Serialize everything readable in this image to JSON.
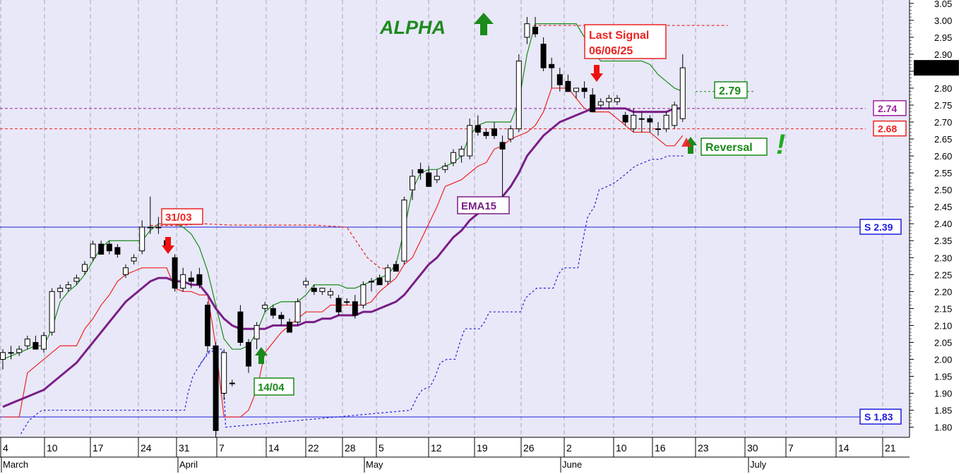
{
  "chart_data": {
    "type": "candlestick",
    "title": "ALPHA",
    "y_range": [
      1.77,
      3.06
    ],
    "y_ticks": [
      "3.05",
      "3.00",
      "2.95",
      "2.90",
      "2.85",
      "2.80",
      "2.75",
      "2.70",
      "2.65",
      "2.60",
      "2.55",
      "2.50",
      "2.45",
      "2.40",
      "2.35",
      "2.30",
      "2.25",
      "2.20",
      "2.15",
      "2.10",
      "2.05",
      "2.00",
      "1.95",
      "1.90",
      "1.85",
      "1.80"
    ],
    "x_day_labels": [
      "4",
      "10",
      "17",
      "24",
      "31",
      "7",
      "14",
      "22",
      "28",
      "5",
      "12",
      "19",
      "26",
      "2",
      "10",
      "16",
      "23",
      "30",
      "7",
      "14",
      "21"
    ],
    "x_month_labels": [
      "March",
      "April",
      "May",
      "June",
      "July"
    ],
    "grid": "vertical dashed",
    "last_price_label": "2.86000",
    "candles": [
      [
        2.0,
        2.03,
        1.97,
        2.02
      ],
      [
        2.02,
        2.04,
        2.0,
        2.02
      ],
      [
        2.02,
        2.04,
        2.01,
        2.03
      ],
      [
        2.04,
        2.07,
        2.03,
        2.06
      ],
      [
        2.05,
        2.07,
        2.03,
        2.03
      ],
      [
        2.03,
        2.08,
        2.02,
        2.07
      ],
      [
        2.08,
        2.21,
        2.07,
        2.2
      ],
      [
        2.2,
        2.22,
        2.18,
        2.21
      ],
      [
        2.21,
        2.23,
        2.2,
        2.22
      ],
      [
        2.23,
        2.25,
        2.22,
        2.24
      ],
      [
        2.26,
        2.29,
        2.25,
        2.28
      ],
      [
        2.3,
        2.35,
        2.29,
        2.34
      ],
      [
        2.34,
        2.35,
        2.32,
        2.31
      ],
      [
        2.34,
        2.35,
        2.31,
        2.32
      ],
      [
        2.33,
        2.34,
        2.3,
        2.31
      ],
      [
        2.25,
        2.28,
        2.24,
        2.27
      ],
      [
        2.29,
        2.31,
        2.28,
        2.3
      ],
      [
        2.32,
        2.41,
        2.31,
        2.39
      ],
      [
        2.39,
        2.48,
        2.37,
        2.39
      ],
      [
        2.39,
        2.42,
        2.37,
        2.39
      ],
      [
        2.35,
        2.36,
        2.33,
        2.33
      ],
      [
        2.3,
        2.31,
        2.2,
        2.21
      ],
      [
        2.21,
        2.27,
        2.2,
        2.25
      ],
      [
        2.24,
        2.26,
        2.21,
        2.23
      ],
      [
        2.25,
        2.27,
        2.21,
        2.22
      ],
      [
        2.16,
        2.17,
        2.02,
        2.04
      ],
      [
        2.04,
        2.05,
        1.76,
        1.79
      ],
      [
        1.9,
        2.03,
        1.88,
        2.02
      ],
      [
        1.93,
        1.94,
        1.92,
        1.93
      ],
      [
        2.14,
        2.16,
        2.04,
        2.05
      ],
      [
        2.05,
        2.06,
        1.96,
        1.98
      ],
      [
        2.06,
        2.11,
        2.03,
        2.1
      ],
      [
        2.15,
        2.17,
        2.14,
        2.16
      ],
      [
        2.15,
        2.16,
        2.12,
        2.13
      ],
      [
        2.13,
        2.14,
        2.1,
        2.12
      ],
      [
        2.11,
        2.12,
        2.08,
        2.08
      ],
      [
        2.11,
        2.18,
        2.1,
        2.17
      ],
      [
        2.22,
        2.24,
        2.21,
        2.23
      ],
      [
        2.21,
        2.22,
        2.19,
        2.2
      ],
      [
        2.2,
        2.21,
        2.19,
        2.21
      ],
      [
        2.19,
        2.21,
        2.18,
        2.2
      ],
      [
        2.18,
        2.19,
        2.13,
        2.14
      ],
      [
        2.17,
        2.18,
        2.16,
        2.17
      ],
      [
        2.17,
        2.19,
        2.12,
        2.13
      ],
      [
        2.16,
        2.23,
        2.15,
        2.22
      ],
      [
        2.23,
        2.24,
        2.2,
        2.23
      ],
      [
        2.24,
        2.25,
        2.22,
        2.22
      ],
      [
        2.23,
        2.28,
        2.22,
        2.27
      ],
      [
        2.28,
        2.29,
        2.27,
        2.26
      ],
      [
        2.29,
        2.48,
        2.28,
        2.47
      ],
      [
        2.5,
        2.56,
        2.47,
        2.54
      ],
      [
        2.56,
        2.58,
        2.53,
        2.55
      ],
      [
        2.55,
        2.57,
        2.52,
        2.51
      ],
      [
        2.53,
        2.56,
        2.52,
        2.54
      ],
      [
        2.56,
        2.58,
        2.55,
        2.57
      ],
      [
        2.58,
        2.62,
        2.57,
        2.61
      ],
      [
        2.6,
        2.63,
        2.58,
        2.62
      ],
      [
        2.6,
        2.71,
        2.59,
        2.69
      ],
      [
        2.69,
        2.72,
        2.66,
        2.67
      ],
      [
        2.67,
        2.68,
        2.65,
        2.66
      ],
      [
        2.68,
        2.7,
        2.65,
        2.66
      ],
      [
        2.64,
        2.66,
        2.47,
        2.62
      ],
      [
        2.65,
        2.69,
        2.64,
        2.68
      ],
      [
        2.68,
        2.9,
        2.67,
        2.88
      ],
      [
        2.95,
        3.01,
        2.93,
        2.99
      ],
      [
        2.98,
        3.01,
        2.95,
        2.96
      ],
      [
        2.93,
        2.95,
        2.85,
        2.86
      ],
      [
        2.87,
        2.89,
        2.8,
        2.86
      ],
      [
        2.84,
        2.86,
        2.79,
        2.81
      ],
      [
        2.82,
        2.84,
        2.8,
        2.79
      ],
      [
        2.79,
        2.8,
        2.77,
        2.8
      ],
      [
        2.8,
        2.82,
        2.77,
        2.79
      ],
      [
        2.78,
        2.8,
        2.74,
        2.73
      ],
      [
        2.75,
        2.77,
        2.74,
        2.76
      ],
      [
        2.76,
        2.78,
        2.74,
        2.77
      ],
      [
        2.76,
        2.78,
        2.75,
        2.77
      ],
      [
        2.72,
        2.73,
        2.69,
        2.7
      ],
      [
        2.68,
        2.74,
        2.67,
        2.72
      ],
      [
        2.71,
        2.73,
        2.67,
        2.71
      ],
      [
        2.71,
        2.72,
        2.67,
        2.7
      ],
      [
        2.68,
        2.7,
        2.66,
        2.68
      ],
      [
        2.68,
        2.73,
        2.67,
        2.72
      ],
      [
        2.69,
        2.76,
        2.68,
        2.75
      ],
      [
        2.71,
        2.9,
        2.7,
        2.86
      ]
    ],
    "ema15": [
      1.86,
      1.87,
      1.88,
      1.89,
      1.9,
      1.91,
      1.93,
      1.95,
      1.97,
      1.99,
      2.02,
      2.05,
      2.08,
      2.11,
      2.14,
      2.17,
      2.19,
      2.21,
      2.23,
      2.24,
      2.24,
      2.23,
      2.23,
      2.22,
      2.22,
      2.19,
      2.15,
      2.12,
      2.1,
      2.09,
      2.09,
      2.09,
      2.09,
      2.1,
      2.1,
      2.1,
      2.1,
      2.11,
      2.11,
      2.12,
      2.12,
      2.13,
      2.13,
      2.13,
      2.14,
      2.14,
      2.15,
      2.16,
      2.17,
      2.19,
      2.22,
      2.25,
      2.28,
      2.3,
      2.33,
      2.36,
      2.38,
      2.41,
      2.43,
      2.44,
      2.46,
      2.48,
      2.51,
      2.55,
      2.6,
      2.63,
      2.66,
      2.68,
      2.7,
      2.71,
      2.72,
      2.73,
      2.74,
      2.74,
      2.74,
      2.74,
      2.74,
      2.73,
      2.73,
      2.73,
      2.73,
      2.73,
      2.74,
      2.74
    ],
    "upper_band": [
      2.0,
      2.01,
      2.02,
      2.03,
      2.04,
      2.04,
      2.09,
      2.17,
      2.2,
      2.22,
      2.25,
      2.29,
      2.33,
      2.35,
      2.35,
      2.35,
      2.35,
      2.35,
      2.38,
      2.4,
      2.4,
      2.4,
      2.39,
      2.37,
      2.33,
      2.26,
      2.16,
      2.06,
      2.03,
      2.03,
      2.04,
      2.08,
      2.14,
      2.16,
      2.17,
      2.17,
      2.17,
      2.19,
      2.22,
      2.22,
      2.22,
      2.22,
      2.21,
      2.21,
      2.22,
      2.23,
      2.24,
      2.25,
      2.28,
      2.38,
      2.5,
      2.55,
      2.56,
      2.56,
      2.57,
      2.58,
      2.6,
      2.66,
      2.69,
      2.7,
      2.7,
      2.7,
      2.7,
      2.76,
      2.9,
      2.99,
      2.99,
      2.99,
      2.99,
      2.99,
      2.99,
      2.95,
      2.91,
      2.88,
      2.88,
      2.88,
      2.88,
      2.88,
      2.88,
      2.87,
      2.84,
      2.82,
      2.8,
      2.79
    ],
    "lower_band": [
      1.83,
      1.83,
      1.83,
      1.96,
      1.98,
      2.0,
      2.02,
      2.04,
      2.04,
      2.04,
      2.09,
      2.12,
      2.16,
      2.19,
      2.23,
      2.25,
      2.26,
      2.27,
      2.27,
      2.27,
      2.27,
      2.21,
      2.2,
      2.2,
      2.19,
      2.19,
      2.04,
      1.83,
      1.83,
      1.83,
      1.85,
      1.91,
      2.02,
      2.05,
      2.08,
      2.1,
      2.12,
      2.14,
      2.14,
      2.14,
      2.16,
      2.16,
      2.16,
      2.16,
      2.16,
      2.17,
      2.2,
      2.22,
      2.24,
      2.28,
      2.3,
      2.35,
      2.4,
      2.45,
      2.51,
      2.52,
      2.53,
      2.55,
      2.57,
      2.58,
      2.62,
      2.63,
      2.65,
      2.66,
      2.67,
      2.69,
      2.73,
      2.8,
      2.8,
      2.8,
      2.77,
      2.74,
      2.73,
      2.73,
      2.73,
      2.71,
      2.69,
      2.67,
      2.67,
      2.67,
      2.65,
      2.63,
      2.63,
      2.66
    ],
    "support_dotted": [
      null,
      null,
      null,
      null,
      null,
      null,
      null,
      null,
      null,
      null,
      null,
      null,
      null,
      null,
      null,
      null,
      null,
      null,
      null,
      null,
      null,
      null,
      null,
      null,
      1.98,
      2.02,
      2.04,
      null,
      null,
      null,
      null,
      null,
      null,
      null,
      null,
      null,
      null,
      null,
      null,
      null,
      null,
      null,
      null,
      null,
      null,
      null,
      null,
      null,
      null,
      null,
      null,
      null,
      null,
      null,
      null,
      null,
      null,
      null,
      null,
      null,
      null,
      null,
      null,
      null,
      null,
      null,
      null,
      null,
      null,
      null,
      null,
      null,
      null,
      null,
      null,
      null,
      null,
      null,
      null,
      null,
      null,
      null,
      null,
      null
    ],
    "trailing_stop": [
      [
        2.2,
        1.78
      ],
      [
        3.2,
        1.82
      ],
      [
        4.2,
        1.84
      ],
      [
        4.8,
        1.85
      ],
      [
        10.2,
        1.85
      ],
      [
        12.2,
        1.85
      ],
      [
        17.2,
        1.85
      ],
      [
        22.2,
        1.85
      ],
      [
        22.6,
        1.9
      ],
      [
        23.2,
        1.95
      ],
      [
        24.2,
        1.99
      ],
      [
        25.2,
        2.02
      ],
      [
        26.2,
        2.03
      ],
      [
        26.8,
        2.03
      ],
      [
        27.2,
        1.8
      ],
      [
        49.8,
        1.85
      ],
      [
        50.6,
        1.89
      ],
      [
        51.2,
        1.91
      ],
      [
        52.2,
        1.92
      ],
      [
        52.8,
        1.95
      ],
      [
        53.4,
        1.99
      ],
      [
        54.2,
        2.0
      ],
      [
        55.2,
        2.0
      ],
      [
        55.8,
        2.05
      ],
      [
        56.4,
        2.09
      ],
      [
        57.2,
        2.09
      ],
      [
        58.2,
        2.09
      ],
      [
        58.8,
        2.11
      ],
      [
        59.4,
        2.14
      ],
      [
        61.2,
        2.14
      ],
      [
        62.2,
        2.14
      ],
      [
        63.2,
        2.14
      ],
      [
        63.8,
        2.18
      ],
      [
        64.2,
        2.19
      ],
      [
        65.2,
        2.21
      ],
      [
        67.2,
        2.21
      ],
      [
        67.8,
        2.25
      ],
      [
        68.4,
        2.27
      ],
      [
        69.2,
        2.27
      ],
      [
        70.2,
        2.27
      ],
      [
        70.8,
        2.35
      ],
      [
        71.4,
        2.42
      ],
      [
        72.2,
        2.45
      ],
      [
        72.8,
        2.5
      ],
      [
        73.8,
        2.51
      ],
      [
        74.6,
        2.52
      ],
      [
        75.2,
        2.53
      ],
      [
        76.2,
        2.55
      ],
      [
        77.2,
        2.57
      ],
      [
        78.2,
        2.58
      ],
      [
        79.2,
        2.59
      ],
      [
        80.2,
        2.59
      ],
      [
        81.2,
        2.6
      ],
      [
        82.2,
        2.6
      ],
      [
        83.2,
        2.6
      ]
    ],
    "signal_trail": [
      [
        18.0,
        2.395
      ],
      [
        21.5,
        2.395
      ],
      [
        24.5,
        2.4
      ],
      [
        28.0,
        2.396
      ],
      [
        38.0,
        2.396
      ],
      [
        42.0,
        2.39
      ],
      [
        44.5,
        2.3
      ],
      [
        46.0,
        2.27
      ],
      [
        47.5,
        2.265
      ]
    ],
    "last_signal_line": [
      [
        64.8,
        2.985
      ],
      [
        88.5,
        2.985
      ]
    ],
    "horizontal_lines": [
      {
        "price": 2.39,
        "label": "S 2.39",
        "style": "solid",
        "color": "#1e1ee0"
      },
      {
        "price": 1.83,
        "label": "S 1,83",
        "style": "solid",
        "color": "#1e1ee0"
      },
      {
        "price": 2.74,
        "label": "2.74",
        "style": "dashed",
        "color": "#a020a0"
      },
      {
        "price": 2.68,
        "label": "2.68",
        "style": "dashed",
        "color": "#ee2222"
      }
    ],
    "annotations": {
      "last_signal": [
        "Last Signal",
        "06/06/25"
      ],
      "date_3103": "31/03",
      "date_1404": "14/04",
      "ema_label": "EMA15",
      "target": "2.79",
      "reversal": "Reversal",
      "exclamation": "!"
    }
  },
  "colors": {
    "plot_bg": "#e8e8f8",
    "up_candle": "#ffffff",
    "down_candle": "#000000",
    "ema": "#7a1e86",
    "upper_band": "#1a8a1a",
    "lower_band": "#ee2222",
    "trailing_stop": "#2222dd",
    "title": "#1f8a1f",
    "last_price_bg": "#000000",
    "last_price_text": "#00ff00"
  }
}
